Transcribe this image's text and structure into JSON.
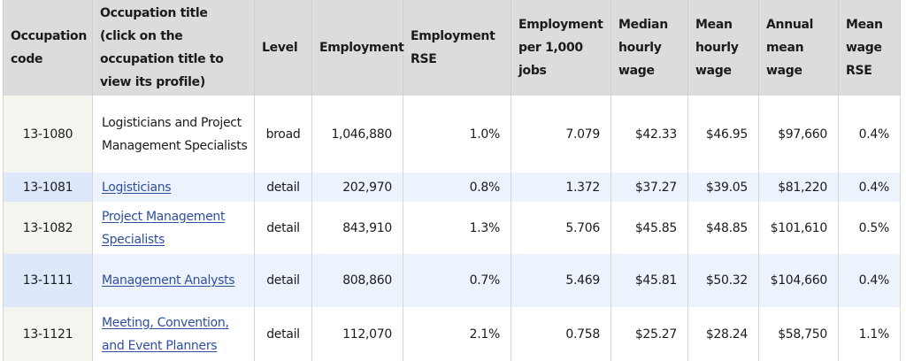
{
  "table": {
    "headers": [
      {
        "key": "code",
        "label": "Occupation code"
      },
      {
        "key": "title",
        "label": "Occupation title (click on the occupation title to view its profile)"
      },
      {
        "key": "level",
        "label": "Level"
      },
      {
        "key": "employment",
        "label": "Employment"
      },
      {
        "key": "employment_rse",
        "label": "Employment RSE"
      },
      {
        "key": "per_1000",
        "label": "Employment per 1,000 jobs"
      },
      {
        "key": "median_hourly",
        "label": "Median hourly wage"
      },
      {
        "key": "mean_hourly",
        "label": "Mean hourly wage"
      },
      {
        "key": "annual_mean",
        "label": "Annual mean wage"
      },
      {
        "key": "mean_wage_rse",
        "label": "Mean wage RSE"
      }
    ],
    "rows": [
      {
        "code": "13-1080",
        "title": "Logisticians and Project Management Specialists",
        "is_link": false,
        "level": "broad",
        "employment": "1,046,880",
        "employment_rse": "1.0%",
        "per_1000": "7.079",
        "median_hourly": "$42.33",
        "mean_hourly": "$46.95",
        "annual_mean": "$97,660",
        "mean_wage_rse": "0.4%"
      },
      {
        "code": "13-1081",
        "title": "Logisticians",
        "is_link": true,
        "level": "detail",
        "employment": "202,970",
        "employment_rse": "0.8%",
        "per_1000": "1.372",
        "median_hourly": "$37.27",
        "mean_hourly": "$39.05",
        "annual_mean": "$81,220",
        "mean_wage_rse": "0.4%"
      },
      {
        "code": "13-1082",
        "title": "Project Management Specialists",
        "is_link": true,
        "level": "detail",
        "employment": "843,910",
        "employment_rse": "1.3%",
        "per_1000": "5.706",
        "median_hourly": "$45.85",
        "mean_hourly": "$48.85",
        "annual_mean": "$101,610",
        "mean_wage_rse": "0.5%"
      },
      {
        "code": "13-1111",
        "title": "Management Analysts",
        "is_link": true,
        "level": "detail",
        "employment": "808,860",
        "employment_rse": "0.7%",
        "per_1000": "5.469",
        "median_hourly": "$45.81",
        "mean_hourly": "$50.32",
        "annual_mean": "$104,660",
        "mean_wage_rse": "0.4%"
      },
      {
        "code": "13-1121",
        "title": "Meeting, Convention, and Event Planners",
        "is_link": true,
        "level": "detail",
        "employment": "112,070",
        "employment_rse": "2.1%",
        "per_1000": "0.758",
        "median_hourly": "$25.27",
        "mean_hourly": "$28.24",
        "annual_mean": "$58,750",
        "mean_wage_rse": "1.1%"
      }
    ]
  },
  "colors": {
    "header_bg": "#dcdcdc",
    "code_col_odd_bg": "#f5f5ef",
    "code_col_even_bg": "#dde9fa",
    "row_even_bg": "#edf3fd",
    "row_odd_bg": "#ffffff",
    "link": "#2e4f9e",
    "border": "#d6d6d6"
  }
}
